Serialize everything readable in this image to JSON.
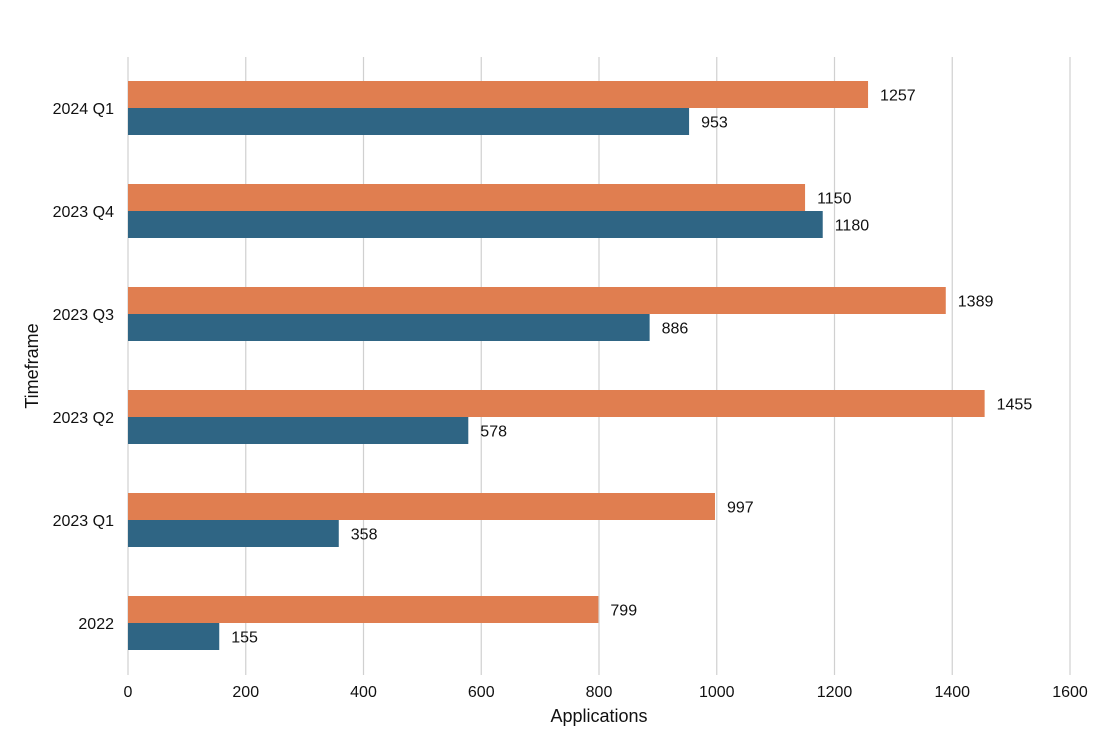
{
  "chart_data": {
    "type": "bar",
    "orientation": "horizontal",
    "title": "",
    "xlabel": "Applications",
    "ylabel": "Timeframe",
    "categories": [
      "2022",
      "2023 Q1",
      "2023 Q2",
      "2023 Q3",
      "2023 Q4",
      "2024 Q1"
    ],
    "series": [
      {
        "color": "#e07e50",
        "values": [
          799,
          997,
          1455,
          1389,
          1150,
          1257
        ]
      },
      {
        "color": "#2f6584",
        "values": [
          155,
          358,
          578,
          886,
          1180,
          953
        ]
      }
    ],
    "xlim": [
      0,
      1600
    ],
    "xticks": [
      0,
      200,
      400,
      600,
      800,
      1000,
      1200,
      1400,
      1600
    ],
    "grid": "vertical",
    "legend": "none",
    "data_labels": true
  }
}
